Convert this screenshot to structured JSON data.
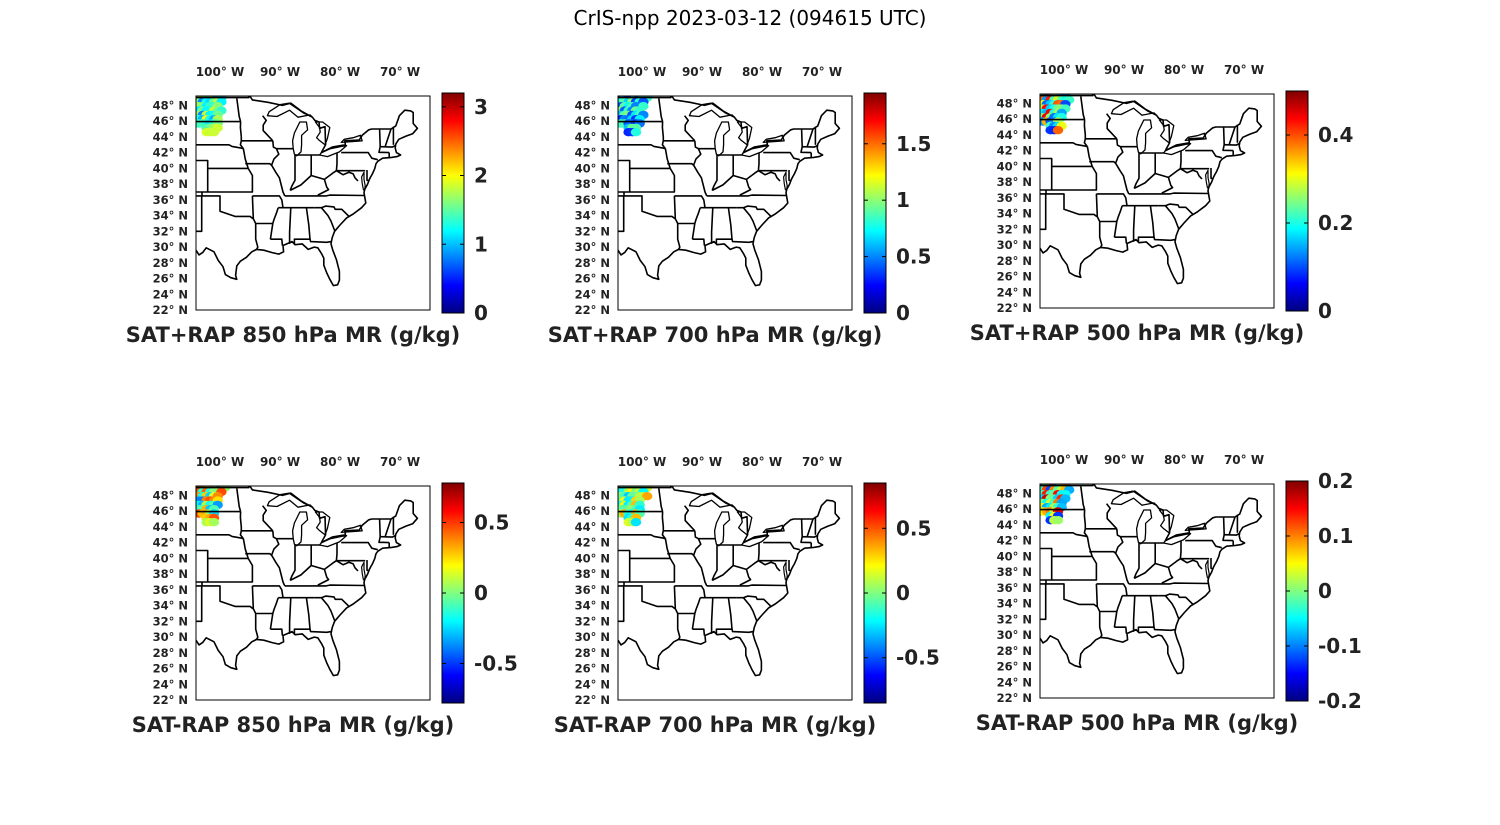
{
  "figure": {
    "title": "CrIS-npp 2023-03-12 (094615 UTC)"
  },
  "chart_data": [
    {
      "type": "heatmap",
      "title": "SAT+RAP 850 hPa MR (g/kg)",
      "lon_ticks": [
        "100° W",
        "90° W",
        "80° W",
        "70° W"
      ],
      "lat_ticks": [
        "48° N",
        "46° N",
        "44° N",
        "42° N",
        "40° N",
        "38° N",
        "36° N",
        "34° N",
        "32° N",
        "30° N",
        "28° N",
        "26° N",
        "24° N",
        "22° N"
      ],
      "colorbar": {
        "colormap": "jet",
        "range": [
          0,
          3.2
        ],
        "ticks": [
          0,
          1,
          2,
          3
        ],
        "tick_labels": [
          "0",
          "1",
          "2",
          "3"
        ]
      },
      "observed_value_range": [
        0.8,
        2.0
      ]
    },
    {
      "type": "heatmap",
      "title": "SAT+RAP 700 hPa MR (g/kg)",
      "lon_ticks": [
        "100° W",
        "90° W",
        "80° W",
        "70° W"
      ],
      "lat_ticks": [
        "48° N",
        "46° N",
        "44° N",
        "42° N",
        "40° N",
        "38° N",
        "36° N",
        "34° N",
        "32° N",
        "30° N",
        "28° N",
        "26° N",
        "24° N",
        "22° N"
      ],
      "colorbar": {
        "colormap": "jet",
        "range": [
          0,
          1.95
        ],
        "ticks": [
          0,
          0.5,
          1,
          1.5
        ],
        "tick_labels": [
          "0",
          "0.5",
          "1",
          "1.5"
        ]
      },
      "observed_value_range": [
        0.3,
        1.0
      ]
    },
    {
      "type": "heatmap",
      "title": "SAT+RAP 500 hPa MR (g/kg)",
      "lon_ticks": [
        "100° W",
        "90° W",
        "80° W",
        "70° W"
      ],
      "lat_ticks": [
        "48° N",
        "46° N",
        "44° N",
        "42° N",
        "40° N",
        "38° N",
        "36° N",
        "34° N",
        "32° N",
        "30° N",
        "28° N",
        "26° N",
        "24° N",
        "22° N"
      ],
      "colorbar": {
        "colormap": "jet",
        "range": [
          0,
          0.5
        ],
        "ticks": [
          0,
          0.2,
          0.4
        ],
        "tick_labels": [
          "0",
          "0.2",
          "0.4"
        ]
      },
      "observed_value_range": [
        0.05,
        0.45
      ]
    },
    {
      "type": "heatmap",
      "title": "SAT-RAP 850 hPa MR (g/kg)",
      "lon_ticks": [
        "100° W",
        "90° W",
        "80° W",
        "70° W"
      ],
      "lat_ticks": [
        "48° N",
        "46° N",
        "44° N",
        "42° N",
        "40° N",
        "38° N",
        "36° N",
        "34° N",
        "32° N",
        "30° N",
        "28° N",
        "26° N",
        "24° N",
        "22° N"
      ],
      "colorbar": {
        "colormap": "jet",
        "range": [
          -0.78,
          0.78
        ],
        "ticks": [
          -0.5,
          0,
          0.5
        ],
        "tick_labels": [
          "-0.5",
          "0",
          "0.5"
        ]
      },
      "observed_value_range": [
        -0.4,
        0.5
      ]
    },
    {
      "type": "heatmap",
      "title": "SAT-RAP 700 hPa MR (g/kg)",
      "lon_ticks": [
        "100° W",
        "90° W",
        "80° W",
        "70° W"
      ],
      "lat_ticks": [
        "48° N",
        "46° N",
        "44° N",
        "42° N",
        "40° N",
        "38° N",
        "36° N",
        "34° N",
        "32° N",
        "30° N",
        "28° N",
        "26° N",
        "24° N",
        "22° N"
      ],
      "colorbar": {
        "colormap": "jet",
        "range": [
          -0.85,
          0.85
        ],
        "ticks": [
          -0.5,
          0,
          0.5
        ],
        "tick_labels": [
          "-0.5",
          "0",
          "0.5"
        ]
      },
      "observed_value_range": [
        -0.3,
        0.4
      ]
    },
    {
      "type": "heatmap",
      "title": "SAT-RAP 500 hPa MR (g/kg)",
      "lon_ticks": [
        "100° W",
        "90° W",
        "80° W",
        "70° W"
      ],
      "lat_ticks": [
        "48° N",
        "46° N",
        "44° N",
        "42° N",
        "40° N",
        "38° N",
        "36° N",
        "34° N",
        "32° N",
        "30° N",
        "28° N",
        "26° N",
        "24° N",
        "22° N"
      ],
      "colorbar": {
        "colormap": "jet",
        "range": [
          -0.2,
          0.2
        ],
        "ticks": [
          -0.2,
          -0.1,
          0,
          0.1,
          0.2
        ],
        "tick_labels": [
          "-0.2",
          "-0.1",
          "0",
          "0.1",
          "0.2"
        ]
      },
      "observed_value_range": [
        -0.15,
        0.18
      ]
    }
  ]
}
